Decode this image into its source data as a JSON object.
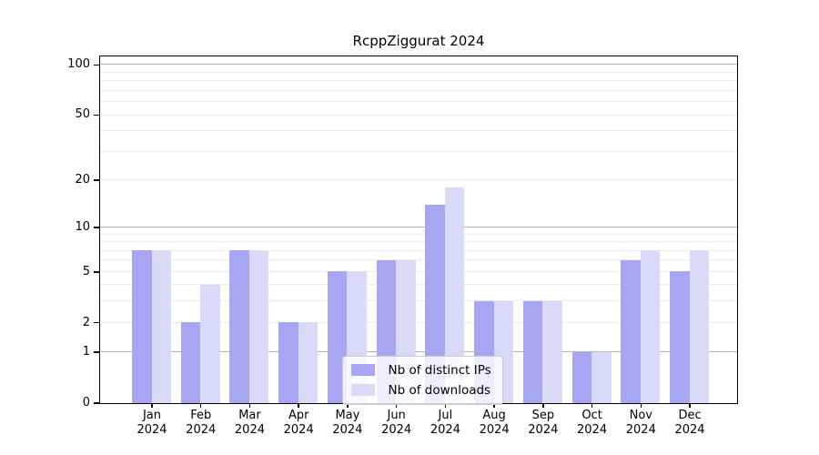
{
  "title": "RcppZiggurat 2024",
  "chart_data": {
    "type": "bar",
    "title": "RcppZiggurat 2024",
    "categories": [
      "Jan",
      "Feb",
      "Mar",
      "Apr",
      "May",
      "Jun",
      "Jul",
      "Aug",
      "Sep",
      "Oct",
      "Nov",
      "Dec"
    ],
    "year": "2024",
    "series": [
      {
        "name": "Nb of distinct IPs",
        "color": "#a6a6f2",
        "values": [
          7,
          2,
          7,
          2,
          5,
          6,
          14,
          3,
          3,
          1,
          6,
          5
        ]
      },
      {
        "name": "Nb of downloads",
        "color": "#d9d9f8",
        "values": [
          7,
          4,
          7,
          2,
          5,
          6,
          18,
          3,
          3,
          1,
          7,
          7
        ]
      }
    ],
    "yscale": "log1p",
    "ylim": [
      0,
      113
    ],
    "yaxis": {
      "ticks": [
        0,
        1,
        2,
        5,
        10,
        20,
        50,
        100
      ],
      "major_gridlines": [
        1,
        10,
        100
      ],
      "minor_gridlines": [
        2,
        3,
        4,
        5,
        6,
        7,
        8,
        9,
        20,
        30,
        40,
        50,
        60,
        70,
        80,
        90
      ],
      "major_grid_color": "#b2b2b2",
      "minor_grid_color": "#ebebeb"
    },
    "legend": {
      "items": [
        "Nb of distinct IPs",
        "Nb of downloads"
      ],
      "position": "lower-center"
    },
    "grid": true,
    "bar_color_ips": "#a6a6f2",
    "bar_color_downloads": "#d9d9f8"
  }
}
